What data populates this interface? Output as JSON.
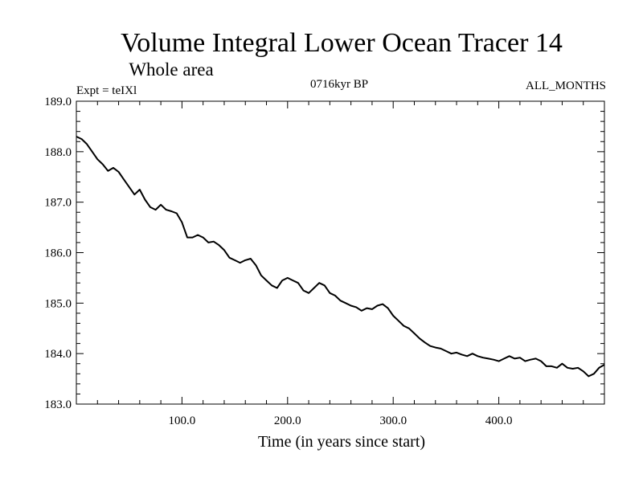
{
  "chart_data": {
    "type": "line",
    "title": "Volume Integral Lower Ocean Tracer 14",
    "subtitle": "Whole area",
    "header_left": "Expt = teIXl",
    "header_center": "0716kyr BP",
    "header_right": "ALL_MONTHS",
    "xlabel": "Time (in years since start)",
    "ylabel": "",
    "xlim": [
      0,
      500
    ],
    "ylim": [
      183.0,
      189.0
    ],
    "x_ticks": [
      100,
      200,
      300,
      400
    ],
    "x_tick_labels": [
      "100.0",
      "200.0",
      "300.0",
      "400.0"
    ],
    "y_ticks": [
      183,
      184,
      185,
      186,
      187,
      188,
      189
    ],
    "y_tick_labels": [
      "183.0",
      "184.0",
      "185.0",
      "186.0",
      "187.0",
      "188.0",
      "189.0"
    ],
    "grid": false,
    "series": [
      {
        "color": "#000000",
        "x": [
          0,
          5,
          10,
          15,
          20,
          25,
          30,
          35,
          40,
          45,
          50,
          55,
          60,
          65,
          70,
          75,
          80,
          85,
          90,
          95,
          100,
          105,
          110,
          115,
          120,
          125,
          130,
          135,
          140,
          145,
          150,
          155,
          160,
          165,
          170,
          175,
          180,
          185,
          190,
          195,
          200,
          205,
          210,
          215,
          220,
          225,
          230,
          235,
          240,
          245,
          250,
          255,
          260,
          265,
          270,
          275,
          280,
          285,
          290,
          295,
          300,
          305,
          310,
          315,
          320,
          325,
          330,
          335,
          340,
          345,
          350,
          355,
          360,
          365,
          370,
          375,
          380,
          385,
          390,
          395,
          400,
          405,
          410,
          415,
          420,
          425,
          430,
          435,
          440,
          445,
          450,
          455,
          460,
          465,
          470,
          475,
          480,
          485,
          490,
          495,
          500
        ],
        "y": [
          188.3,
          188.25,
          188.15,
          188.0,
          187.85,
          187.75,
          187.62,
          187.68,
          187.6,
          187.45,
          187.3,
          187.15,
          187.25,
          187.05,
          186.9,
          186.85,
          186.95,
          186.85,
          186.82,
          186.78,
          186.6,
          186.3,
          186.3,
          186.35,
          186.3,
          186.2,
          186.22,
          186.15,
          186.05,
          185.9,
          185.85,
          185.8,
          185.85,
          185.88,
          185.75,
          185.55,
          185.45,
          185.35,
          185.3,
          185.45,
          185.5,
          185.45,
          185.4,
          185.25,
          185.2,
          185.3,
          185.4,
          185.35,
          185.2,
          185.15,
          185.05,
          185.0,
          184.95,
          184.92,
          184.85,
          184.9,
          184.88,
          184.95,
          184.98,
          184.9,
          184.75,
          184.65,
          184.55,
          184.5,
          184.4,
          184.3,
          184.22,
          184.15,
          184.12,
          184.1,
          184.05,
          184.0,
          184.02,
          183.98,
          183.95,
          184.0,
          183.95,
          183.92,
          183.9,
          183.88,
          183.85,
          183.9,
          183.95,
          183.9,
          183.92,
          183.85,
          183.88,
          183.9,
          183.85,
          183.75,
          183.75,
          183.72,
          183.8,
          183.72,
          183.7,
          183.72,
          183.65,
          183.55,
          183.6,
          183.72,
          183.78
        ]
      }
    ]
  }
}
